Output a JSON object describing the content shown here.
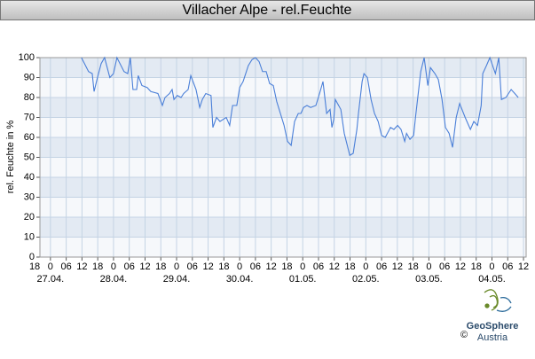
{
  "chart_data": {
    "type": "line",
    "title": "Villacher Alpe - rel.Feuchte",
    "ylabel": "rel. Feuchte in %",
    "xlim": [
      -4,
      181
    ],
    "ylim": [
      0,
      100
    ],
    "yticks": [
      0,
      10,
      20,
      30,
      40,
      50,
      60,
      70,
      80,
      90,
      100
    ],
    "xticks": [
      {
        "value": -6,
        "label": "18"
      },
      {
        "value": 0,
        "label": "0"
      },
      {
        "value": 6,
        "label": "06"
      },
      12,
      18,
      {
        "value": 24,
        "label": "0"
      },
      {
        "value": 30,
        "label": "06"
      },
      {
        "value": 36,
        "label": "12"
      },
      {
        "value": 42,
        "label": "18"
      },
      {
        "value": 48,
        "label": "0"
      },
      {
        "value": 54,
        "label": "06"
      },
      {
        "value": 60,
        "label": "12"
      },
      {
        "value": 66,
        "label": "18"
      },
      {
        "value": 72,
        "label": "0"
      },
      {
        "value": 78,
        "label": "06"
      },
      {
        "value": 84,
        "label": "12"
      },
      {
        "value": 90,
        "label": "18"
      },
      {
        "value": 96,
        "label": "0"
      },
      {
        "value": 102,
        "label": "06"
      },
      {
        "value": 108,
        "label": "12"
      },
      {
        "value": 114,
        "label": "18"
      },
      {
        "value": 120,
        "label": "0"
      },
      {
        "value": 126,
        "label": "06"
      },
      {
        "value": 132,
        "label": "12"
      },
      {
        "value": 138,
        "label": "18"
      },
      {
        "value": 144,
        "label": "0"
      },
      {
        "value": 150,
        "label": "06"
      },
      {
        "value": 156,
        "label": "12"
      },
      {
        "value": 162,
        "label": "18"
      },
      {
        "value": 168,
        "label": "0"
      },
      {
        "value": 174,
        "label": "06"
      },
      {
        "value": 180,
        "label": "12"
      }
    ],
    "date_ticks": [
      {
        "value": 0,
        "label": "27.04."
      },
      {
        "value": 24,
        "label": "28.04."
      },
      {
        "value": 48,
        "label": "29.04."
      },
      {
        "value": 72,
        "label": "30.04."
      },
      {
        "value": 96,
        "label": "01.05."
      },
      {
        "value": 120,
        "label": "02.05."
      },
      {
        "value": 144,
        "label": "03.05."
      },
      {
        "value": 168,
        "label": "04.05."
      }
    ],
    "grid": true,
    "color": "#4a7fd8",
    "x": [
      11.8,
      14.5,
      15.9,
      16.6,
      17.9,
      19.3,
      20.6,
      22.6,
      24,
      25.3,
      28,
      29.4,
      30.4,
      31.4,
      32.8,
      33.4,
      34.8,
      36.8,
      38.2,
      40.9,
      42.6,
      43.6,
      45.3,
      46.3,
      47,
      48.3,
      49.7,
      50.7,
      52.4,
      53.4,
      55.4,
      56.8,
      57.8,
      59.1,
      61.1,
      61.8,
      63.2,
      64.5,
      66.9,
      68.2,
      69.3,
      70.9,
      72,
      73.3,
      75.3,
      76.7,
      78,
      79.4,
      80.7,
      82.1,
      83.4,
      84.8,
      86.1,
      87.5,
      88.9,
      90.2,
      91.6,
      92.9,
      94.3,
      95.3,
      96.3,
      97.6,
      99,
      101,
      102.4,
      103.7,
      105.1,
      106.4,
      107.1,
      107.8,
      108.4,
      110.5,
      111.8,
      113.9,
      115.2,
      116.6,
      117.2,
      118.6,
      119.3,
      120.6,
      122,
      123.3,
      124.7,
      126,
      127.4,
      129.4,
      130.7,
      132.1,
      133.4,
      134.8,
      135.5,
      136.8,
      138.2,
      138.9,
      140.9,
      142.2,
      143.6,
      144.6,
      146.3,
      147.6,
      149,
      150.3,
      151.7,
      153,
      154.4,
      155.7,
      157.8,
      159.8,
      161.1,
      162.5,
      163.9,
      164.5,
      165.9,
      167.2,
      169.3,
      170.6,
      171.6,
      173.3,
      175.3,
      176.7,
      178
    ],
    "values": [
      100,
      93,
      92,
      83,
      90,
      97,
      100,
      90,
      92,
      100,
      93,
      92,
      100,
      84,
      84,
      91,
      86,
      85,
      83,
      82,
      76,
      80,
      82,
      84,
      79,
      81,
      80,
      82,
      84,
      91,
      84,
      75,
      79,
      82,
      81,
      65,
      70,
      68,
      70,
      66,
      76,
      76,
      85,
      88,
      96,
      99,
      100,
      98,
      93,
      93,
      87,
      86,
      78,
      72,
      66,
      58,
      56,
      68,
      72,
      72,
      75,
      76,
      75,
      76,
      82,
      88,
      72,
      74,
      65,
      69,
      79,
      74,
      62,
      51,
      52,
      64,
      72,
      88,
      92,
      90,
      79,
      72,
      68,
      61,
      60,
      65,
      64,
      66,
      64,
      58,
      62,
      59,
      61,
      70,
      93,
      100,
      86,
      95,
      92,
      89,
      79,
      65,
      62,
      55,
      70,
      77,
      70,
      64,
      68,
      66,
      76,
      92,
      96,
      100,
      92,
      100,
      79,
      80,
      84,
      82,
      80
    ]
  },
  "footer": {
    "logo_name": "GeoSphere",
    "logo_sub": "Austria",
    "copyright": "©"
  }
}
